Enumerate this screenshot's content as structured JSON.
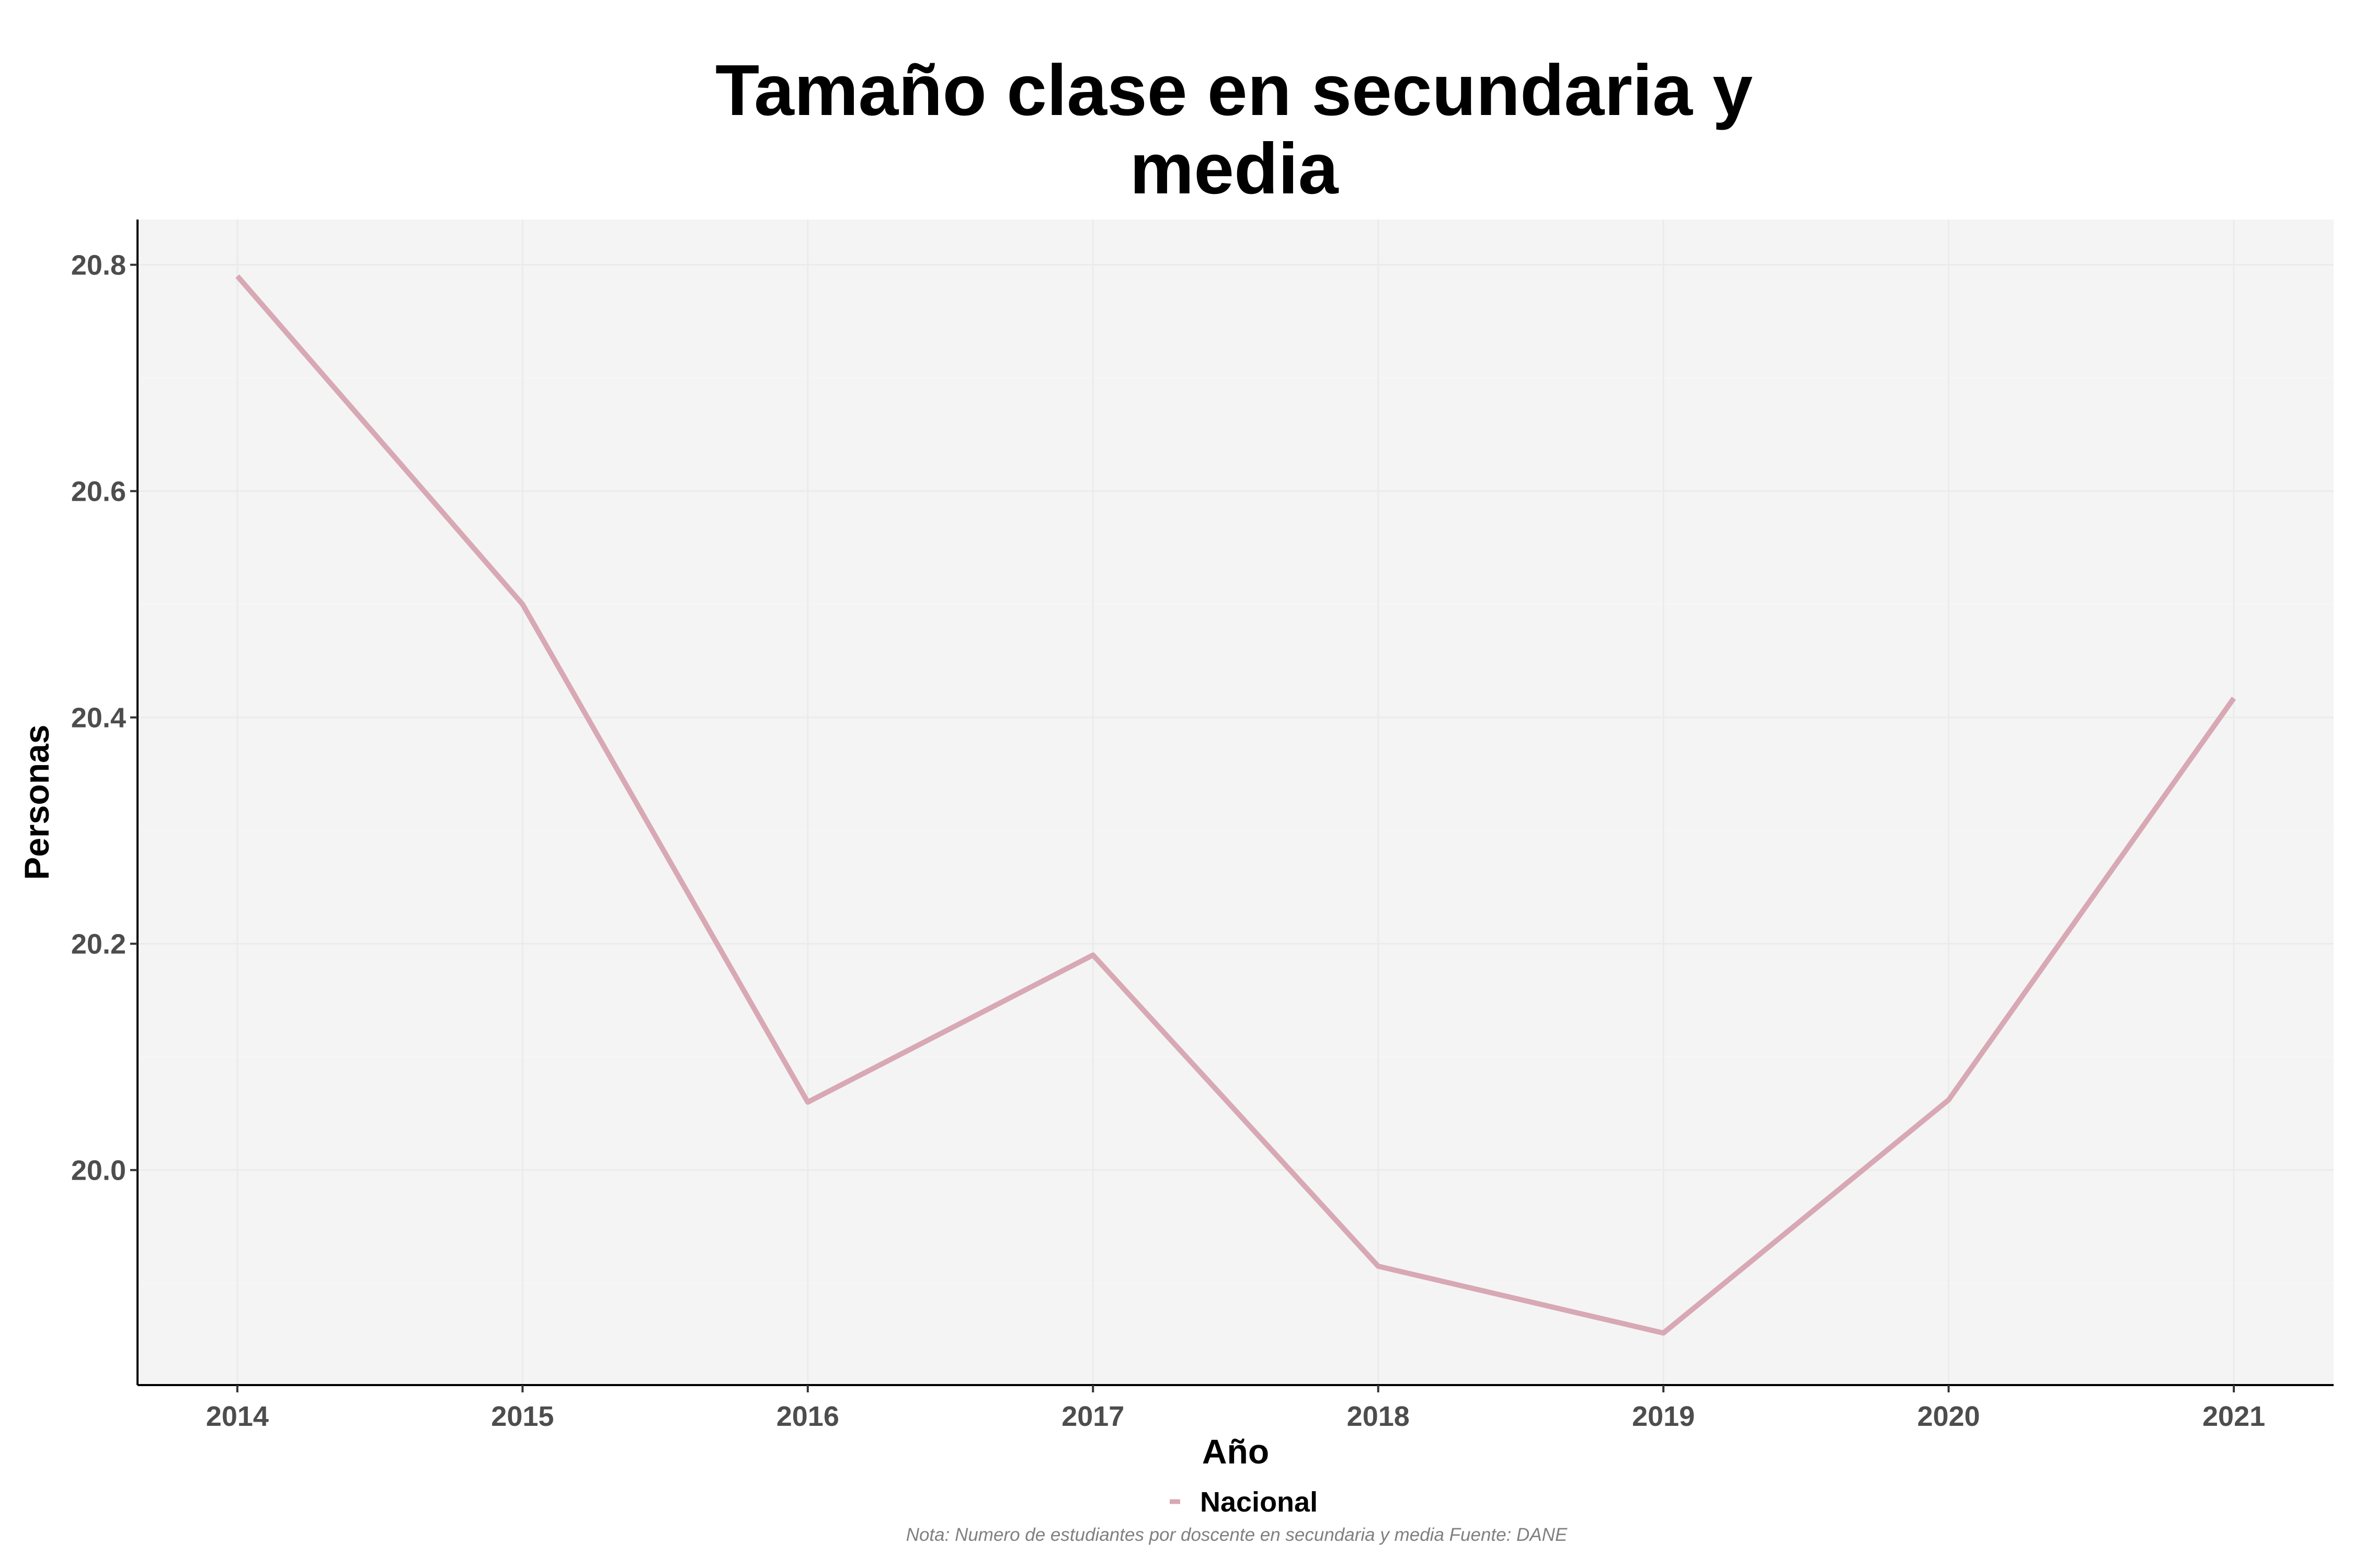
{
  "chart_data": {
    "type": "line",
    "title_lines": [
      "Tamaño clase en secundaria y",
      "media"
    ],
    "xlabel": "Año",
    "ylabel": "Personas",
    "x": [
      2014,
      2015,
      2016,
      2017,
      2018,
      2019,
      2020,
      2021
    ],
    "series": [
      {
        "name": "Nacional",
        "color": "#d8a8b4",
        "values": [
          20.79,
          20.5,
          20.06,
          20.19,
          19.915,
          19.856,
          20.062,
          20.417
        ]
      }
    ],
    "xlim": [
      2013.65,
      2021.35
    ],
    "ylim": [
      19.81,
      20.84
    ],
    "y_ticks": [
      "20.0",
      "20.2",
      "20.4",
      "20.6",
      "20.8"
    ],
    "x_ticks": [
      "2014",
      "2015",
      "2016",
      "2017",
      "2018",
      "2019",
      "2020",
      "2021"
    ],
    "grid": true,
    "panel_color": "#f4f4f4",
    "legend_position": "bottom",
    "caption": "Nota: Numero de estudiantes por doscente en secundaria y media Fuente: DANE"
  }
}
